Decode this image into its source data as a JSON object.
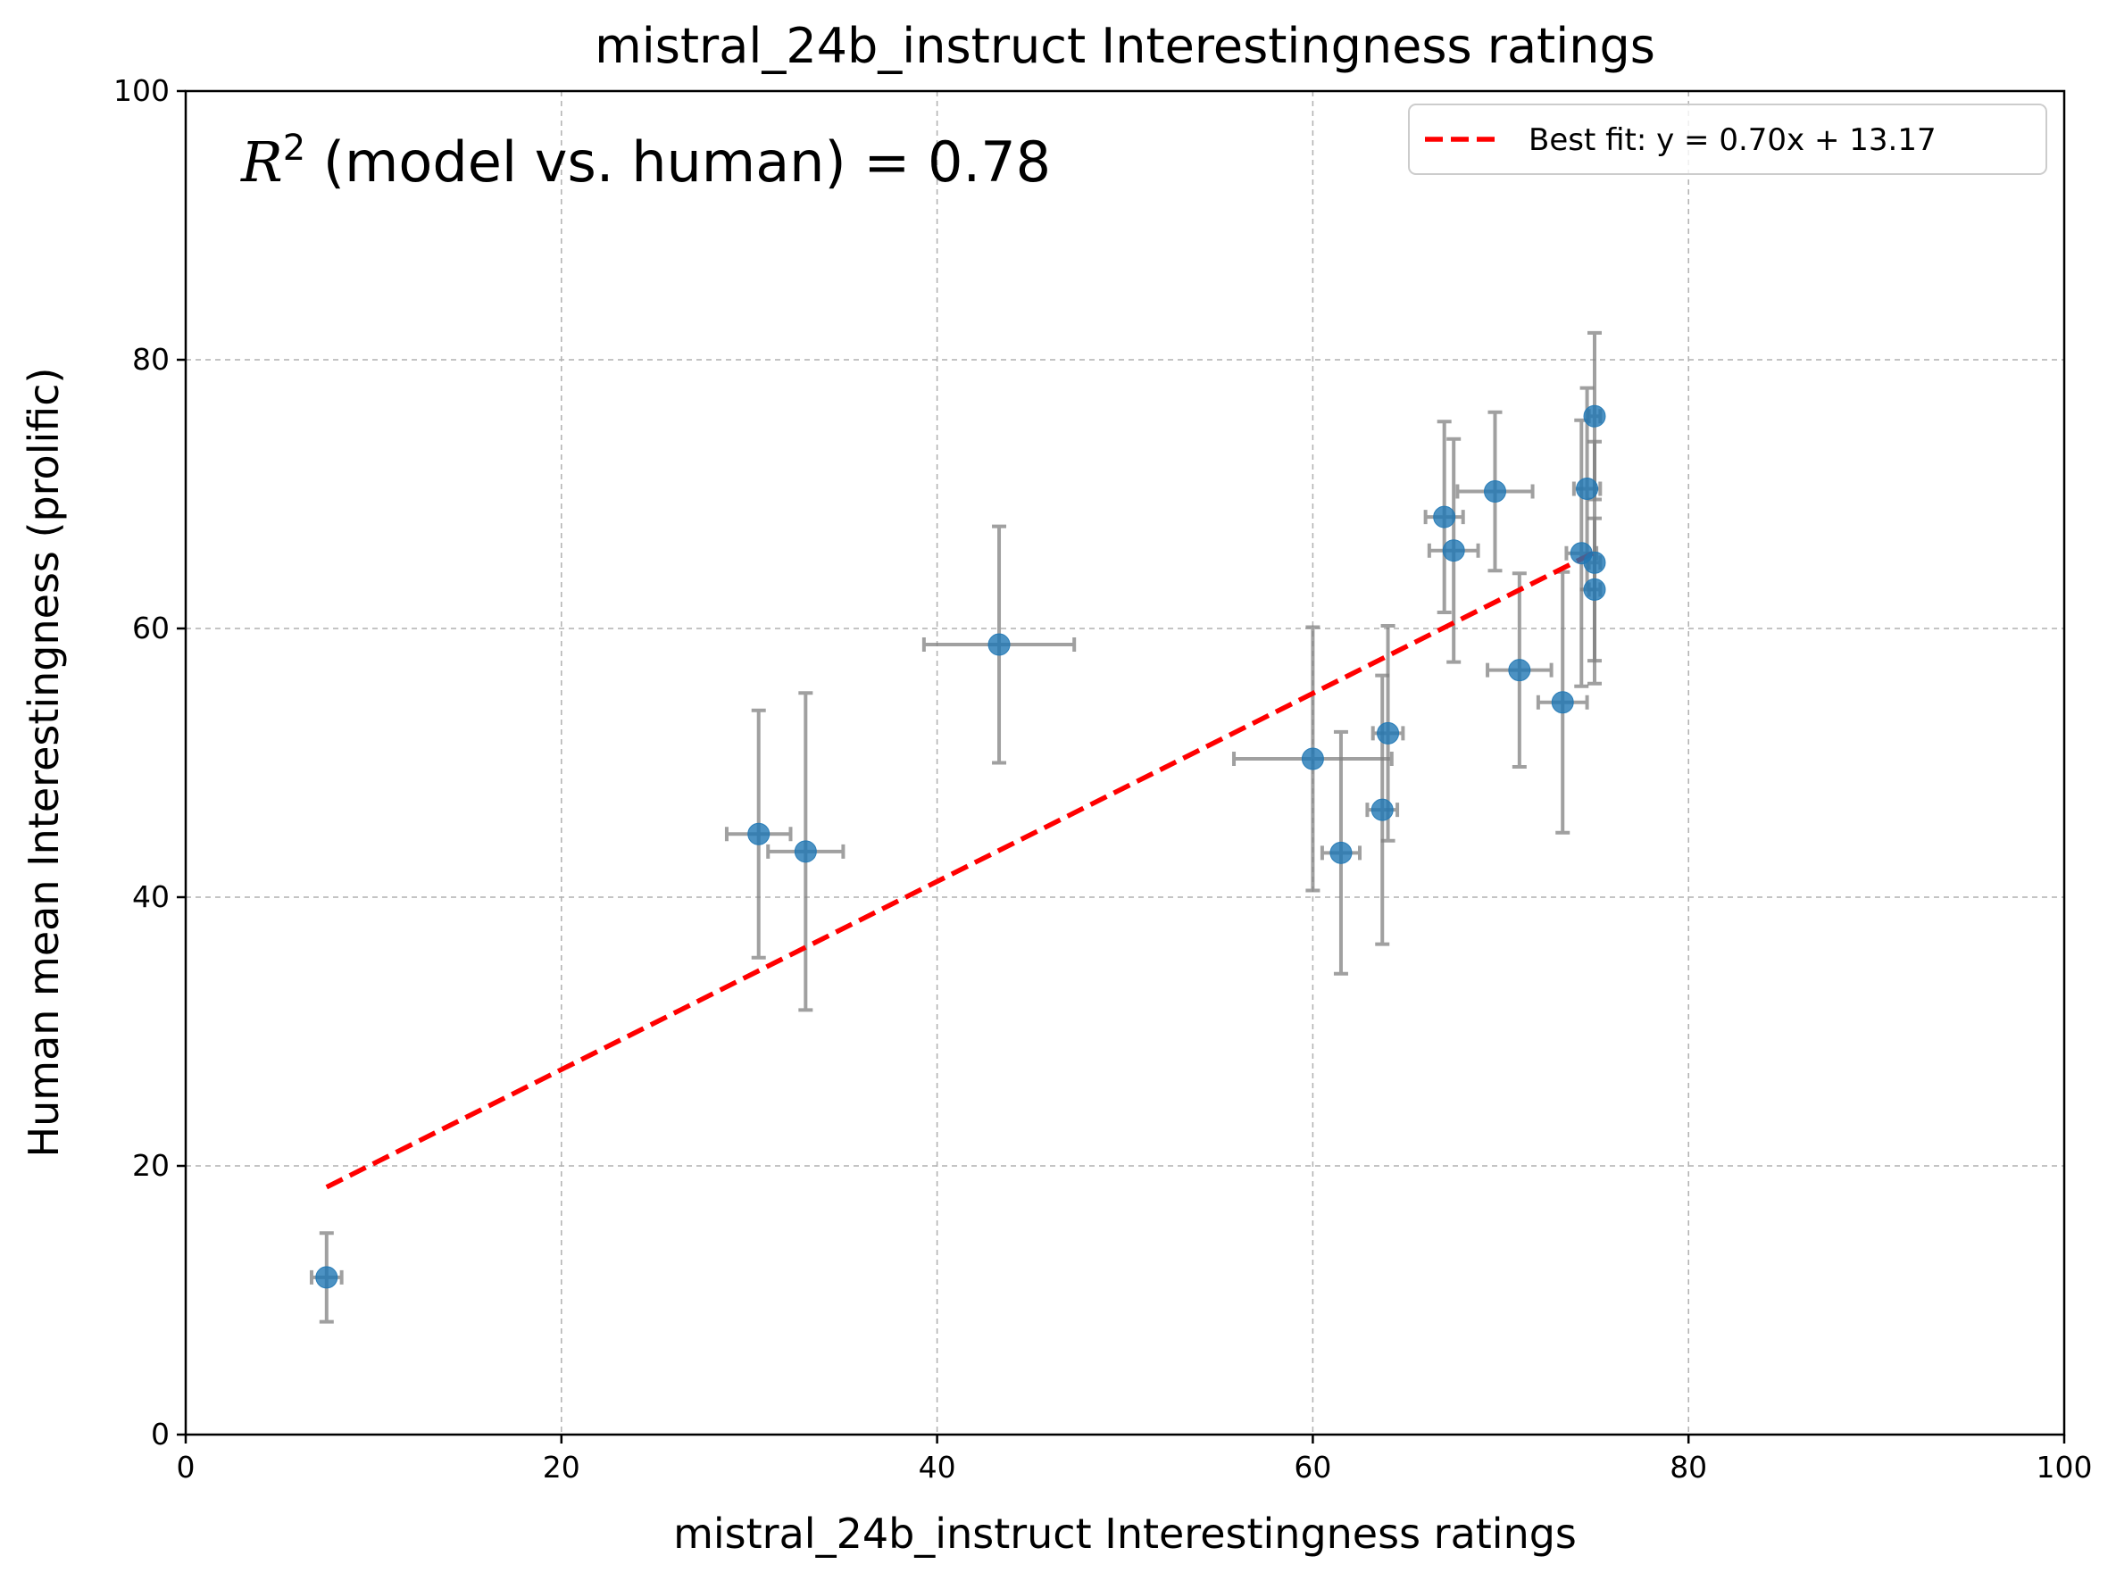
{
  "chart_data": {
    "type": "scatter",
    "title": "mistral_24b_instruct Interestingness ratings",
    "xlabel": "mistral_24b_instruct Interestingness ratings",
    "ylabel": "Human mean Interestingness (prolific)",
    "xlim": [
      0,
      100
    ],
    "ylim": [
      0,
      100
    ],
    "xticks": [
      0,
      20,
      40,
      60,
      80,
      100
    ],
    "yticks": [
      0,
      20,
      40,
      60,
      80,
      100
    ],
    "grid": true,
    "annotation": {
      "r2_symbol": "R",
      "r2_exponent": "2",
      "text": " (model vs. human) = 0.78"
    },
    "legend": {
      "position": "top-right",
      "label": "Best fit: y = 0.70x + 13.17"
    },
    "fit": {
      "slope": 0.7,
      "intercept": 13.17,
      "x_start": 7.5,
      "x_end": 75.0,
      "color": "#ff0000"
    },
    "points": [
      {
        "x": 7.5,
        "y": 11.7,
        "xerr": 0.8,
        "yerr": 3.3
      },
      {
        "x": 30.5,
        "y": 44.7,
        "xerr": 1.7,
        "yerr": 9.2
      },
      {
        "x": 33.0,
        "y": 43.4,
        "xerr": 2.0,
        "yerr": 11.8
      },
      {
        "x": 43.3,
        "y": 58.8,
        "xerr": 4.0,
        "yerr": 8.8
      },
      {
        "x": 60.0,
        "y": 50.3,
        "xerr": 4.2,
        "yerr": 9.8
      },
      {
        "x": 61.5,
        "y": 43.3,
        "xerr": 1.0,
        "yerr": 9.0
      },
      {
        "x": 63.7,
        "y": 46.5,
        "xerr": 0.8,
        "yerr": 10.0
      },
      {
        "x": 64.0,
        "y": 52.2,
        "xerr": 0.8,
        "yerr": 8.0
      },
      {
        "x": 67.0,
        "y": 68.3,
        "xerr": 1.0,
        "yerr": 7.1
      },
      {
        "x": 67.5,
        "y": 65.8,
        "xerr": 1.3,
        "yerr": 8.3
      },
      {
        "x": 69.7,
        "y": 70.2,
        "xerr": 2.0,
        "yerr": 5.9
      },
      {
        "x": 71.0,
        "y": 56.9,
        "xerr": 1.7,
        "yerr": 7.2
      },
      {
        "x": 73.3,
        "y": 54.5,
        "xerr": 1.3,
        "yerr": 9.7
      },
      {
        "x": 74.3,
        "y": 65.6,
        "xerr": 0.8,
        "yerr": 9.9
      },
      {
        "x": 74.6,
        "y": 70.4,
        "xerr": 0.7,
        "yerr": 7.5
      },
      {
        "x": 75.0,
        "y": 75.8,
        "xerr": 0.3,
        "yerr": 6.2
      },
      {
        "x": 75.0,
        "y": 64.9,
        "xerr": 0.3,
        "yerr": 9.0
      },
      {
        "x": 75.0,
        "y": 62.9,
        "xerr": 0.3,
        "yerr": 5.3
      }
    ]
  }
}
